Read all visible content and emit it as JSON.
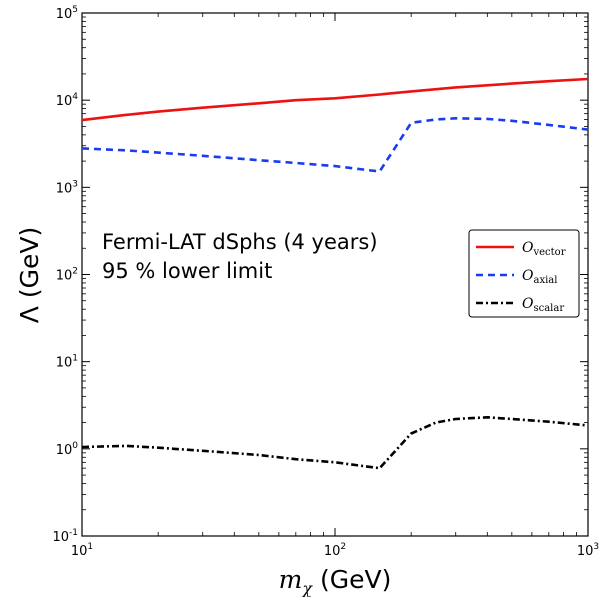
{
  "chart_data": {
    "type": "line",
    "x_scale": "log",
    "y_scale": "log",
    "xlim": [
      10,
      1000
    ],
    "ylim": [
      0.1,
      100000
    ],
    "xlabel": {
      "var": "m",
      "sub": "χ",
      "unit": " (GeV)"
    },
    "ylabel": {
      "var": "Λ",
      "unit": " (GeV)"
    },
    "x_ticks": [
      {
        "value": 10,
        "base": "10",
        "exp": "1"
      },
      {
        "value": 100,
        "base": "10",
        "exp": "2"
      },
      {
        "value": 1000,
        "base": "10",
        "exp": "3"
      }
    ],
    "y_ticks": [
      {
        "value": 0.1,
        "base": "10",
        "exp": "-1"
      },
      {
        "value": 1,
        "base": "10",
        "exp": "0"
      },
      {
        "value": 10,
        "base": "10",
        "exp": "1"
      },
      {
        "value": 100,
        "base": "10",
        "exp": "2"
      },
      {
        "value": 1000,
        "base": "10",
        "exp": "3"
      },
      {
        "value": 10000,
        "base": "10",
        "exp": "4"
      },
      {
        "value": 100000,
        "base": "10",
        "exp": "5"
      }
    ],
    "annotation": [
      "Fermi-LAT dSphs (4 years)",
      "95 % lower limit"
    ],
    "legend_position": "center-right",
    "series": [
      {
        "name": "O",
        "sub": "vector",
        "color": "#ee1111",
        "style": "solid",
        "x": [
          10,
          15,
          20,
          30,
          50,
          70,
          100,
          150,
          200,
          300,
          500,
          700,
          1000
        ],
        "y": [
          5900,
          6800,
          7400,
          8200,
          9200,
          10000,
          10500,
          11600,
          12600,
          14000,
          15500,
          16500,
          17500
        ]
      },
      {
        "name": "O",
        "sub": "axial",
        "color": "#1a3cf0",
        "style": "dashed",
        "x": [
          10,
          15,
          20,
          30,
          50,
          70,
          100,
          150,
          200,
          250,
          300,
          400,
          500,
          700,
          1000
        ],
        "y": [
          2800,
          2650,
          2500,
          2300,
          2050,
          1900,
          1750,
          1520,
          5500,
          6000,
          6200,
          6100,
          5800,
          5200,
          4600
        ]
      },
      {
        "name": "O",
        "sub": "scalar",
        "color": "#000000",
        "style": "dashdot",
        "x": [
          10,
          15,
          20,
          30,
          50,
          70,
          100,
          150,
          200,
          250,
          300,
          400,
          500,
          700,
          1000
        ],
        "y": [
          1.05,
          1.08,
          1.03,
          0.95,
          0.85,
          0.76,
          0.7,
          0.6,
          1.5,
          2.0,
          2.2,
          2.3,
          2.2,
          2.05,
          1.85
        ]
      }
    ]
  }
}
